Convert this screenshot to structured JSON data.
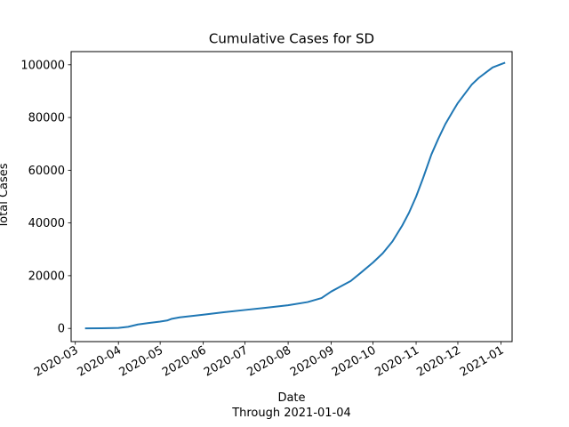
{
  "chart_data": {
    "type": "line",
    "title": "Cumulative Cases for SD",
    "xlabel": "Date",
    "xlabel_sub": "Through 2021-01-04",
    "ylabel": "Total Cases",
    "xlim": [
      "2020-02-27",
      "2021-01-09"
    ],
    "ylim": [
      -5000,
      105000
    ],
    "yticks": [
      0,
      20000,
      40000,
      60000,
      80000,
      100000
    ],
    "xticks": [
      "2020-03",
      "2020-04",
      "2020-05",
      "2020-06",
      "2020-07",
      "2020-08",
      "2020-09",
      "2020-10",
      "2020-11",
      "2020-12",
      "2021-01"
    ],
    "grid": false,
    "line_color": "#1f77b4",
    "series": [
      {
        "x": [
          "2020-03-08",
          "2020-03-20",
          "2020-04-01",
          "2020-04-08",
          "2020-04-15",
          "2020-04-22",
          "2020-05-01",
          "2020-05-06",
          "2020-05-09",
          "2020-05-15",
          "2020-06-01",
          "2020-06-15",
          "2020-07-01",
          "2020-07-15",
          "2020-08-01",
          "2020-08-15",
          "2020-08-25",
          "2020-09-01",
          "2020-09-08",
          "2020-09-15",
          "2020-09-22",
          "2020-10-01",
          "2020-10-08",
          "2020-10-15",
          "2020-10-22",
          "2020-10-27",
          "2020-11-01",
          "2020-11-06",
          "2020-11-12",
          "2020-11-17",
          "2020-11-22",
          "2020-11-27",
          "2020-12-01",
          "2020-12-06",
          "2020-12-11",
          "2020-12-16",
          "2020-12-21",
          "2020-12-26",
          "2021-01-01",
          "2021-01-04"
        ],
        "y": [
          0,
          50,
          200,
          600,
          1500,
          2000,
          2600,
          3000,
          3600,
          4200,
          5200,
          6100,
          7000,
          7800,
          8800,
          10000,
          11500,
          14000,
          16000,
          18000,
          21000,
          25000,
          28500,
          33000,
          39000,
          44000,
          50000,
          57000,
          66000,
          72000,
          77500,
          82000,
          85500,
          89000,
          92500,
          95000,
          97000,
          99000,
          100200,
          100800
        ]
      }
    ]
  }
}
